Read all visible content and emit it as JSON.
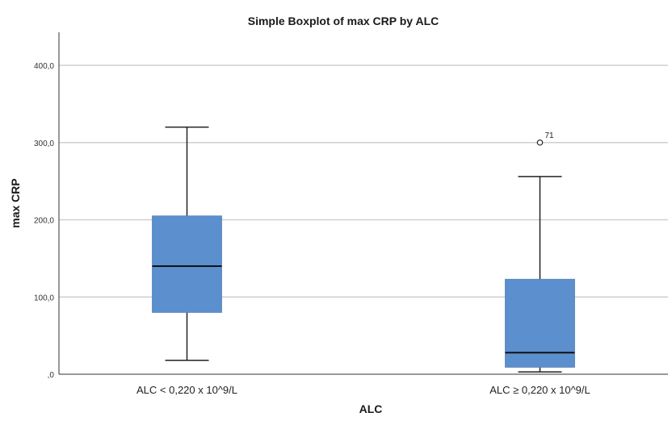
{
  "chart_data": {
    "type": "boxplot",
    "title": "Simple Boxplot of max CRP by ALC",
    "xlabel": "ALC",
    "ylabel": "max CRP",
    "ylim": [
      0,
      445
    ],
    "yticks": [
      0,
      100,
      200,
      300,
      400
    ],
    "ytick_labels": [
      ",0",
      "100,0",
      "200,0",
      "300,0",
      "400,0"
    ],
    "grid": "horizontal",
    "box_color": "#5b8fce",
    "categories": [
      "ALC < 0,220 x 10^9/L",
      "ALC ≥ 0,220 x 10^9/L"
    ],
    "boxes": [
      {
        "category": "ALC < 0,220 x 10^9/L",
        "whisker_low": 18,
        "q1": 80,
        "median": 140,
        "q3": 205,
        "whisker_high": 320,
        "outliers": []
      },
      {
        "category": "ALC ≥ 0,220 x 10^9/L",
        "whisker_low": 3,
        "q1": 9,
        "median": 28,
        "q3": 123,
        "whisker_high": 256,
        "outliers": [
          {
            "value": 300,
            "label": "71"
          }
        ]
      }
    ]
  }
}
